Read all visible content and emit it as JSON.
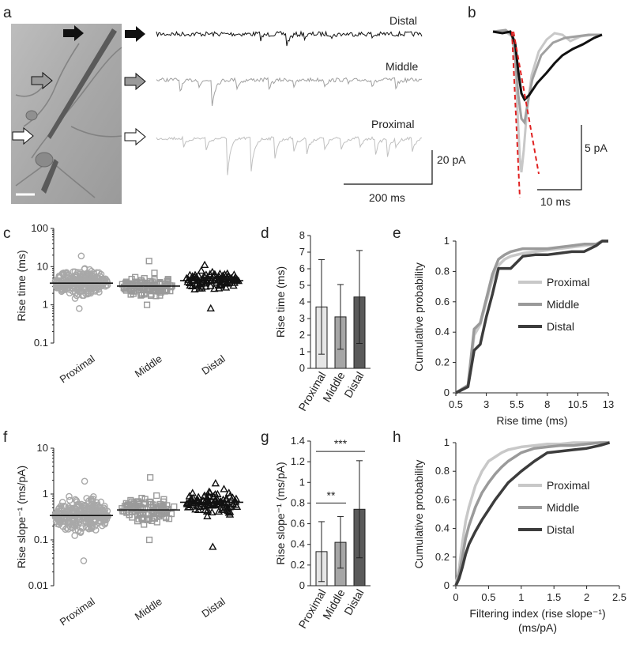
{
  "panel_letters": {
    "a": "a",
    "b": "b",
    "c": "c",
    "d": "d",
    "e": "e",
    "f": "f",
    "g": "g",
    "h": "h"
  },
  "colors": {
    "proximal": "#c8c8c8",
    "middle": "#9a9a9a",
    "distal": "#3c3c3c",
    "red": "#e02020",
    "black": "#111111"
  },
  "panel_a": {
    "trace_labels": [
      "Distal",
      "Middle",
      "Proximal"
    ],
    "scale_y": "20 pA",
    "scale_x": "200 ms"
  },
  "panel_b": {
    "scale_y": "5 pA",
    "scale_x": "10 ms"
  },
  "chart_data": [
    {
      "panel": "c",
      "type": "scatter",
      "title": "",
      "ylabel": "Rise time (ms)",
      "yscale": "log",
      "ylim": [
        0.1,
        100
      ],
      "yticks": [
        "0.1",
        "1",
        "10",
        "100"
      ],
      "categories": [
        "Proximal",
        "Middle",
        "Distal"
      ],
      "means": [
        3.7,
        3.1,
        4.3
      ],
      "ranges": [
        [
          0.8,
          19
        ],
        [
          1.0,
          14
        ],
        [
          0.8,
          11
        ]
      ],
      "markers": [
        "circle",
        "square",
        "triangle"
      ]
    },
    {
      "panel": "d",
      "type": "bar",
      "title": "",
      "ylabel": "Rise time (ms)",
      "ylim": [
        0,
        8
      ],
      "yticks": [
        "0",
        "1",
        "2",
        "3",
        "4",
        "5",
        "6",
        "7",
        "8"
      ],
      "categories": [
        "Proximal",
        "Middle",
        "Distal"
      ],
      "values": [
        3.7,
        3.1,
        4.3
      ],
      "errors": [
        2.85,
        1.95,
        2.8
      ]
    },
    {
      "panel": "e",
      "type": "line",
      "title": "",
      "xlabel": "Rise time (ms)",
      "ylabel": "Cumulative probability",
      "xlim": [
        0.5,
        13
      ],
      "ylim": [
        0,
        1
      ],
      "xticks": [
        "0.5",
        "3",
        "5.5",
        "8",
        "10.5",
        "13"
      ],
      "yticks": [
        "0",
        "0.2",
        "0.4",
        "0.6",
        "0.8",
        "1"
      ],
      "series": [
        {
          "name": "Proximal",
          "x": [
            0.5,
            1.5,
            2.0,
            2.5,
            3.0,
            3.5,
            4.0,
            4.5,
            5.0,
            6.0,
            7.0,
            8.0,
            9.0,
            10.0,
            11.0,
            12.0,
            12.5,
            13.0
          ],
          "y": [
            0,
            0.04,
            0.38,
            0.45,
            0.6,
            0.75,
            0.84,
            0.88,
            0.9,
            0.92,
            0.93,
            0.94,
            0.95,
            0.96,
            0.97,
            0.98,
            1.0,
            1.0
          ]
        },
        {
          "name": "Middle",
          "x": [
            0.5,
            1.5,
            2.0,
            2.5,
            3.0,
            3.5,
            4.0,
            4.5,
            5.0,
            6.0,
            7.0,
            8.0,
            9.0,
            10.0,
            11.0,
            12.0,
            12.5,
            13.0
          ],
          "y": [
            0,
            0.05,
            0.42,
            0.46,
            0.62,
            0.78,
            0.88,
            0.91,
            0.93,
            0.95,
            0.95,
            0.95,
            0.96,
            0.97,
            0.98,
            0.98,
            1.0,
            1.0
          ]
        },
        {
          "name": "Distal",
          "x": [
            0.5,
            1.5,
            2.0,
            2.5,
            3.0,
            3.5,
            4.0,
            4.5,
            5.0,
            6.0,
            7.0,
            8.0,
            9.0,
            10.0,
            11.0,
            12.0,
            12.5,
            13.0
          ],
          "y": [
            0,
            0.04,
            0.28,
            0.32,
            0.5,
            0.65,
            0.82,
            0.82,
            0.82,
            0.9,
            0.91,
            0.91,
            0.92,
            0.93,
            0.93,
            0.97,
            1.0,
            1.0
          ]
        }
      ]
    },
    {
      "panel": "f",
      "type": "scatter",
      "title": "",
      "ylabel": "Rise slope⁻¹ (ms/pA)",
      "yscale": "log",
      "ylim": [
        0.01,
        10
      ],
      "yticks": [
        "0.01",
        "0.1",
        "1",
        "10"
      ],
      "categories": [
        "Proximal",
        "Middle",
        "Distal"
      ],
      "means": [
        0.34,
        0.45,
        0.66
      ],
      "ranges": [
        [
          0.035,
          1.9
        ],
        [
          0.1,
          2.3
        ],
        [
          0.07,
          1.7
        ]
      ],
      "markers": [
        "circle",
        "square",
        "triangle"
      ]
    },
    {
      "panel": "g",
      "type": "bar",
      "title": "",
      "ylabel": "Rise slope⁻¹ (ms/pA)",
      "ylim": [
        0,
        1.4
      ],
      "yticks": [
        "0",
        "0.2",
        "0.4",
        "0.6",
        "0.8",
        "1",
        "1.2",
        "1.4"
      ],
      "categories": [
        "Proximal",
        "Middle",
        "Distal"
      ],
      "values": [
        0.33,
        0.42,
        0.74
      ],
      "errors": [
        0.29,
        0.25,
        0.47
      ],
      "significance": [
        {
          "from": 0,
          "to": 1,
          "label": "**",
          "y": 0.8
        },
        {
          "from": 0,
          "to": 2,
          "label": "***",
          "y": 1.3
        }
      ]
    },
    {
      "panel": "h",
      "type": "line",
      "title": "",
      "xlabel": "Filtering index (rise slope⁻¹)",
      "xlabel2": "(ms/pA)",
      "ylabel": "Cumulative probability",
      "xlim": [
        0,
        2.5
      ],
      "ylim": [
        0,
        1
      ],
      "xticks": [
        "0",
        "0.5",
        "1",
        "1.5",
        "2",
        "2.5"
      ],
      "yticks": [
        "0",
        "0.2",
        "0.4",
        "0.6",
        "0.8",
        "1"
      ],
      "series": [
        {
          "name": "Proximal",
          "x": [
            0,
            0.05,
            0.1,
            0.15,
            0.2,
            0.3,
            0.4,
            0.5,
            0.6,
            0.7,
            0.8,
            1.0,
            1.2,
            1.4,
            1.6,
            1.8,
            2.0,
            2.2,
            2.35
          ],
          "y": [
            0,
            0.12,
            0.3,
            0.45,
            0.55,
            0.7,
            0.8,
            0.87,
            0.9,
            0.93,
            0.95,
            0.97,
            0.98,
            0.99,
            0.99,
            1.0,
            1.0,
            1.0,
            1.0
          ]
        },
        {
          "name": "Middle",
          "x": [
            0,
            0.05,
            0.1,
            0.15,
            0.2,
            0.3,
            0.4,
            0.5,
            0.6,
            0.7,
            0.8,
            1.0,
            1.2,
            1.4,
            1.6,
            1.8,
            2.0,
            2.2,
            2.35
          ],
          "y": [
            0,
            0.08,
            0.2,
            0.33,
            0.42,
            0.55,
            0.65,
            0.72,
            0.78,
            0.83,
            0.87,
            0.93,
            0.96,
            0.97,
            0.98,
            0.98,
            0.99,
            1.0,
            1.0
          ]
        },
        {
          "name": "Distal",
          "x": [
            0,
            0.05,
            0.1,
            0.15,
            0.2,
            0.3,
            0.4,
            0.5,
            0.6,
            0.7,
            0.8,
            1.0,
            1.2,
            1.4,
            1.6,
            1.8,
            2.0,
            2.2,
            2.35
          ],
          "y": [
            0,
            0.05,
            0.13,
            0.22,
            0.29,
            0.38,
            0.46,
            0.53,
            0.6,
            0.66,
            0.72,
            0.8,
            0.87,
            0.93,
            0.94,
            0.95,
            0.96,
            0.98,
            1.0
          ]
        }
      ]
    }
  ]
}
